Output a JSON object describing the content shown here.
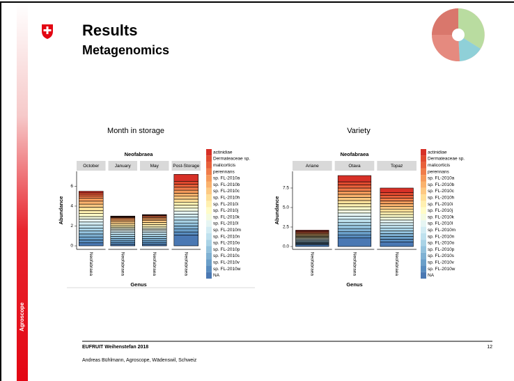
{
  "slide": {
    "title": "Results",
    "subtitle": "Metagenomics",
    "sidebar": "Agroscope",
    "footer_event": "EUFRUIT Weihenstefan 2018",
    "page_number": "12",
    "footer_author": "Andreas Bühlmann, Agroscope, Wädenswil, Schweiz"
  },
  "chart_data": [
    {
      "type": "bar",
      "stacked": true,
      "caption": "Month in storage",
      "title": "Neofabraea",
      "facets": [
        "October",
        "January",
        "May",
        "Post-Storage"
      ],
      "x_tick_label": "Neofabraea",
      "xlabel": "Genus",
      "ylabel": "Abundance",
      "ylim": [
        -0.35,
        7.5
      ],
      "yticks": [
        0,
        2,
        4,
        6
      ],
      "series": [
        {
          "name": "actinidiae",
          "color": "#d73027",
          "values": [
            0.15,
            0.05,
            0.05,
            0.7
          ]
        },
        {
          "name": "Dermateaceae sp.",
          "color": "#e04a2f",
          "values": [
            0.15,
            0.05,
            0.05,
            0.3
          ]
        },
        {
          "name": "malicorticis",
          "color": "#e8603a",
          "values": [
            0.2,
            0.05,
            0.1,
            0.3
          ]
        },
        {
          "name": "perennans",
          "color": "#f07c4a",
          "values": [
            0.2,
            0.1,
            0.1,
            0.3
          ]
        },
        {
          "name": "sp. FL-2010a",
          "color": "#f59a5b",
          "values": [
            0.3,
            0.15,
            0.15,
            0.3
          ]
        },
        {
          "name": "sp. FL-2010b",
          "color": "#fab26d",
          "values": [
            0.3,
            0.15,
            0.15,
            0.3
          ]
        },
        {
          "name": "sp. FL-2010c",
          "color": "#fdc982",
          "values": [
            0.3,
            0.2,
            0.2,
            0.3
          ]
        },
        {
          "name": "sp. FL-2010h",
          "color": "#fedf98",
          "values": [
            0.35,
            0.2,
            0.2,
            0.3
          ]
        },
        {
          "name": "sp. FL-2010i",
          "color": "#fff0b0",
          "values": [
            0.3,
            0.15,
            0.2,
            0.3
          ]
        },
        {
          "name": "sp. FL-2010j",
          "color": "#fffcc8",
          "values": [
            0.3,
            0.1,
            0.15,
            0.3
          ]
        },
        {
          "name": "sp. FL-2010k",
          "color": "#f4fbe0",
          "values": [
            0.25,
            0.15,
            0.15,
            0.3
          ]
        },
        {
          "name": "sp. FL-2010l",
          "color": "#e6f5f3",
          "values": [
            0.3,
            0.15,
            0.15,
            0.3
          ]
        },
        {
          "name": "sp. FL-2010m",
          "color": "#d3ecf3",
          "values": [
            0.3,
            0.15,
            0.15,
            0.3
          ]
        },
        {
          "name": "sp. FL-2010n",
          "color": "#bfe1ee",
          "values": [
            0.3,
            0.2,
            0.2,
            0.3
          ]
        },
        {
          "name": "sp. FL-2010o",
          "color": "#a9d3e6",
          "values": [
            0.3,
            0.2,
            0.2,
            0.3
          ]
        },
        {
          "name": "sp. FL-2010p",
          "color": "#93c2dd",
          "values": [
            0.3,
            0.2,
            0.2,
            0.3
          ]
        },
        {
          "name": "sp. FL-2010s",
          "color": "#7fb1d3",
          "values": [
            0.3,
            0.2,
            0.2,
            0.3
          ]
        },
        {
          "name": "sp. FL-2010v",
          "color": "#6a9fc9",
          "values": [
            0.3,
            0.2,
            0.2,
            0.3
          ]
        },
        {
          "name": "sp. FL-2010w",
          "color": "#588cbf",
          "values": [
            0.3,
            0.2,
            0.2,
            0.3
          ]
        },
        {
          "name": "NA",
          "color": "#4a78b3",
          "values": [
            0.3,
            0.15,
            0.15,
            1.1
          ]
        }
      ]
    },
    {
      "type": "bar",
      "stacked": true,
      "caption": "Variety",
      "title": "Neofabraea",
      "facets": [
        "Ariane",
        "Otava",
        "Topaz"
      ],
      "x_tick_label": "Neofabraea",
      "xlabel": "Genus",
      "ylabel": "Abundance",
      "ylim": [
        -0.36,
        9.64
      ],
      "yticks": [
        {
          "value": 0,
          "label": "0.0"
        },
        {
          "value": 2.5,
          "label": "2.5"
        },
        {
          "value": 5,
          "label": "5.0"
        },
        {
          "value": 7.5,
          "label": "7.5"
        }
      ],
      "series": [
        {
          "name": "actinidiae",
          "color": "#d73027",
          "values": [
            0.1,
            0.8,
            0.6
          ]
        },
        {
          "name": "Dermateaceae sp.",
          "color": "#e04a2f",
          "values": [
            0.1,
            0.4,
            0.35
          ]
        },
        {
          "name": "malicorticis",
          "color": "#e8603a",
          "values": [
            0.1,
            0.4,
            0.35
          ]
        },
        {
          "name": "perennans",
          "color": "#f07c4a",
          "values": [
            0.1,
            0.4,
            0.35
          ]
        },
        {
          "name": "sp. FL-2010a",
          "color": "#f59a5b",
          "values": [
            0.1,
            0.4,
            0.35
          ]
        },
        {
          "name": "sp. FL-2010b",
          "color": "#fab26d",
          "values": [
            0.1,
            0.4,
            0.35
          ]
        },
        {
          "name": "sp. FL-2010c",
          "color": "#fdc982",
          "values": [
            0.1,
            0.4,
            0.35
          ]
        },
        {
          "name": "sp. FL-2010h",
          "color": "#fedf98",
          "values": [
            0.1,
            0.4,
            0.35
          ]
        },
        {
          "name": "sp. FL-2010i",
          "color": "#fff0b0",
          "values": [
            0.1,
            0.4,
            0.35
          ]
        },
        {
          "name": "sp. FL-2010j",
          "color": "#fffcc8",
          "values": [
            0.1,
            0.4,
            0.35
          ]
        },
        {
          "name": "sp. FL-2010k",
          "color": "#f4fbe0",
          "values": [
            0.1,
            0.4,
            0.35
          ]
        },
        {
          "name": "sp. FL-2010l",
          "color": "#e6f5f3",
          "values": [
            0.1,
            0.4,
            0.35
          ]
        },
        {
          "name": "sp. FL-2010m",
          "color": "#d3ecf3",
          "values": [
            0.1,
            0.4,
            0.35
          ]
        },
        {
          "name": "sp. FL-2010n",
          "color": "#bfe1ee",
          "values": [
            0.1,
            0.4,
            0.35
          ]
        },
        {
          "name": "sp. FL-2010o",
          "color": "#a9d3e6",
          "values": [
            0.1,
            0.4,
            0.35
          ]
        },
        {
          "name": "sp. FL-2010p",
          "color": "#93c2dd",
          "values": [
            0.1,
            0.4,
            0.35
          ]
        },
        {
          "name": "sp. FL-2010s",
          "color": "#7fb1d3",
          "values": [
            0.1,
            0.4,
            0.35
          ]
        },
        {
          "name": "sp. FL-2010v",
          "color": "#6a9fc9",
          "values": [
            0.1,
            0.4,
            0.35
          ]
        },
        {
          "name": "sp. FL-2010w",
          "color": "#588cbf",
          "values": [
            0.1,
            0.4,
            0.35
          ]
        },
        {
          "name": "NA",
          "color": "#4a78b3",
          "values": [
            0.2,
            1.1,
            0.6
          ]
        }
      ]
    }
  ]
}
